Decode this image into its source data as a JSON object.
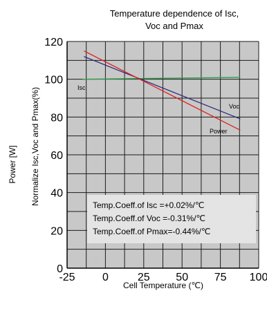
{
  "chart_data": {
    "type": "line",
    "title": [
      "Temperature dependence of Isc,",
      "Voc and Pmax"
    ],
    "xlabel": "Cell Temperature (℃)",
    "ylabel_outer": "Power [W]",
    "ylabel_inner": "Normalize Isc,Voc and Pmax(%)",
    "xlim": [
      -25,
      100
    ],
    "ylim": [
      0,
      120
    ],
    "xticks": [
      "-25",
      "0",
      "25",
      "50",
      "75",
      "100"
    ],
    "yticks": [
      "0",
      "20",
      "40",
      "60",
      "80",
      "100",
      "120"
    ],
    "grid": true,
    "series": [
      {
        "name": "Isc",
        "x": [
          -15,
          88
        ],
        "y": [
          100,
          101
        ],
        "color": "#2e9a4a"
      },
      {
        "name": "Voc",
        "x": [
          -14,
          88
        ],
        "y": [
          112,
          79
        ],
        "color": "#2c2c7a"
      },
      {
        "name": "Power",
        "x": [
          -14,
          88
        ],
        "y": [
          115,
          73
        ],
        "color": "#e02020"
      }
    ],
    "annotations": [
      "Temp.Coeff.of Isc =+0.02%/℃",
      "Temp.Coeff.of Voc =-0.31%/℃",
      "Temp.Coeff.of Pmax=-0.44%/℃"
    ]
  }
}
